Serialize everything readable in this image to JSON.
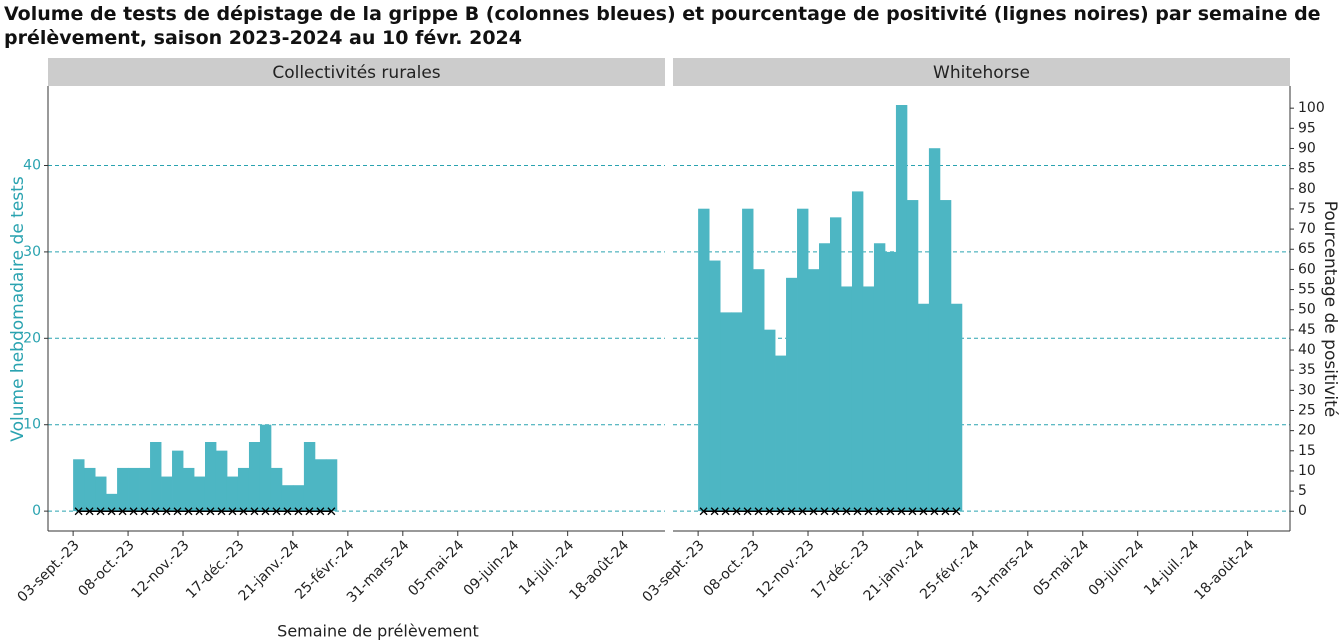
{
  "chart_data": {
    "type": "bar",
    "title": "Volume de tests de dépistage de la grippe B (colonnes bleues) et pourcentage de positivité (lignes noires) par semaine de prélèvement, saison 2023-2024 au 10 févr. 2024",
    "x_label": "Semaine de prélèvement",
    "y_label": "Volume hebdomadaire de tests",
    "y2_label": "Pourcentage de positivité",
    "x": [
      "2023-09-03",
      "2023-09-10",
      "2023-09-17",
      "2023-09-24",
      "2023-10-01",
      "2023-10-08",
      "2023-10-15",
      "2023-10-22",
      "2023-10-29",
      "2023-11-05",
      "2023-11-12",
      "2023-11-19",
      "2023-11-26",
      "2023-12-03",
      "2023-12-10",
      "2023-12-17",
      "2023-12-24",
      "2023-12-31",
      "2024-01-07",
      "2024-01-14",
      "2024-01-21",
      "2024-01-28",
      "2024-02-04",
      "2024-02-11"
    ],
    "xlim": [
      "2023-08-18",
      "2024-09-14"
    ],
    "xticks": [
      {
        "value": "2023-09-03",
        "label": "03-sept.-23"
      },
      {
        "value": "2023-10-08",
        "label": "08-oct.-23"
      },
      {
        "value": "2023-11-12",
        "label": "12-nov.-23"
      },
      {
        "value": "2023-12-17",
        "label": "17-déc.-23"
      },
      {
        "value": "2024-01-21",
        "label": "21-janv.-24"
      },
      {
        "value": "2024-02-25",
        "label": "25-févr.-24"
      },
      {
        "value": "2024-03-31",
        "label": "31-mars-24"
      },
      {
        "value": "2024-05-05",
        "label": "05-mai-24"
      },
      {
        "value": "2024-06-09",
        "label": "09-juin-24"
      },
      {
        "value": "2024-07-14",
        "label": "14-juil.-24"
      },
      {
        "value": "2024-08-18",
        "label": "18-août-24"
      }
    ],
    "ylim": [
      -2.3,
      49.2
    ],
    "yticks": [
      0,
      10,
      20,
      30,
      40
    ],
    "y2lim": [
      -4.9,
      105.5
    ],
    "y2ticks": [
      0,
      5,
      10,
      15,
      20,
      25,
      30,
      35,
      40,
      45,
      50,
      55,
      60,
      65,
      70,
      75,
      80,
      85,
      90,
      95,
      100
    ],
    "grid": true,
    "panels": [
      {
        "title": "Collectivités rurales",
        "series": [
          {
            "color": "#4db6c3",
            "values": [
              6,
              5,
              4,
              2,
              5,
              5,
              5,
              8,
              4,
              7,
              5,
              4,
              8,
              7,
              4,
              5,
              8,
              10,
              5,
              3,
              3,
              8,
              6,
              6
            ]
          },
          {
            "type": "line",
            "axis": "y2",
            "color": "#000000",
            "values": [
              0,
              0,
              0,
              0,
              0,
              0,
              0,
              0,
              0,
              0,
              0,
              0,
              0,
              0,
              0,
              0,
              0,
              0,
              0,
              0,
              0,
              0,
              0,
              0
            ]
          }
        ]
      },
      {
        "title": "Whitehorse",
        "series": [
          {
            "color": "#4db6c3",
            "values": [
              35,
              29,
              23,
              23,
              35,
              28,
              21,
              18,
              27,
              35,
              28,
              31,
              34,
              26,
              37,
              26,
              31,
              30,
              47,
              36,
              24,
              42,
              36,
              24
            ]
          },
          {
            "type": "line",
            "axis": "y2",
            "color": "#000000",
            "values": [
              0,
              0,
              0,
              0,
              0,
              0,
              0,
              0,
              0,
              0,
              0,
              0,
              0,
              0,
              0,
              0,
              0,
              0,
              0,
              0,
              0,
              0,
              0,
              0
            ]
          }
        ]
      }
    ]
  }
}
